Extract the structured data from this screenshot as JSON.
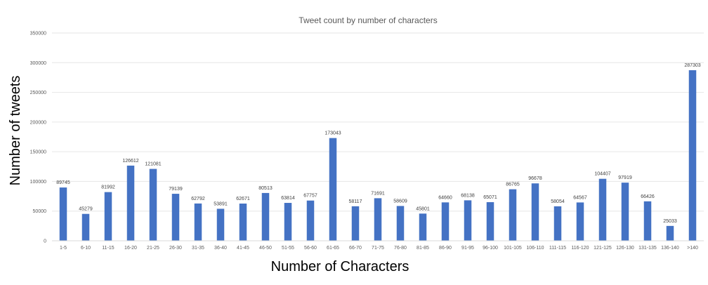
{
  "chart_data": {
    "type": "bar",
    "title": "Tweet count by number of characters",
    "xlabel": "Number of Characters",
    "ylabel": "Number of tweets",
    "ylim": [
      0,
      350000
    ],
    "yticks": [
      "0",
      "50000",
      "100000",
      "150000",
      "200000",
      "250000",
      "300000",
      "350000"
    ],
    "grid": true,
    "bar_color": "#4472C4",
    "categories": [
      "1-5",
      "6-10",
      "11-15",
      "16-20",
      "21-25",
      "26-30",
      "31-35",
      "36-40",
      "41-45",
      "46-50",
      "51-55",
      "56-60",
      "61-65",
      "66-70",
      "71-75",
      "76-80",
      "81-85",
      "86-90",
      "91-95",
      "96-100",
      "101-105",
      "106-110",
      "111-115",
      "116-120",
      "121-125",
      "126-130",
      "131-135",
      "136-140",
      ">140"
    ],
    "values": [
      89745,
      45279,
      81992,
      126612,
      121081,
      79139,
      62792,
      53891,
      62671,
      80513,
      63814,
      67757,
      173043,
      58117,
      71691,
      58609,
      45801,
      64660,
      68138,
      65071,
      86765,
      96678,
      58054,
      64567,
      104407,
      97919,
      66426,
      25033,
      287303
    ]
  }
}
